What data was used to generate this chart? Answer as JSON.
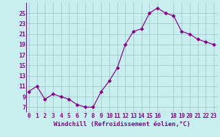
{
  "x": [
    0,
    1,
    2,
    3,
    4,
    5,
    6,
    7,
    8,
    9,
    10,
    11,
    12,
    13,
    14,
    15,
    16,
    17,
    18,
    19,
    20,
    21,
    22,
    23
  ],
  "y": [
    10,
    11,
    8.5,
    9.5,
    9,
    8.5,
    7.5,
    7,
    7,
    10,
    12,
    14.5,
    19,
    21.5,
    22,
    25,
    26,
    25,
    24.5,
    21.5,
    21,
    20,
    19.5,
    19
  ],
  "line_color": "#880088",
  "marker": "D",
  "marker_size": 2.5,
  "bg_color": "#c8eef0",
  "grid_color": "#a0c8c8",
  "xlabel": "Windchill (Refroidissement éolien,°C)",
  "xticks": [
    0,
    1,
    2,
    3,
    4,
    5,
    6,
    7,
    8,
    9,
    10,
    11,
    12,
    13,
    14,
    15,
    16,
    18,
    19,
    20,
    21,
    22,
    23
  ],
  "yticks": [
    7,
    9,
    11,
    13,
    15,
    17,
    19,
    21,
    23,
    25
  ],
  "ylim": [
    6.0,
    27.0
  ],
  "xlim": [
    -0.3,
    23.5
  ],
  "xlabel_fontsize": 6.5,
  "tick_fontsize": 6.0,
  "label_color": "#880088"
}
